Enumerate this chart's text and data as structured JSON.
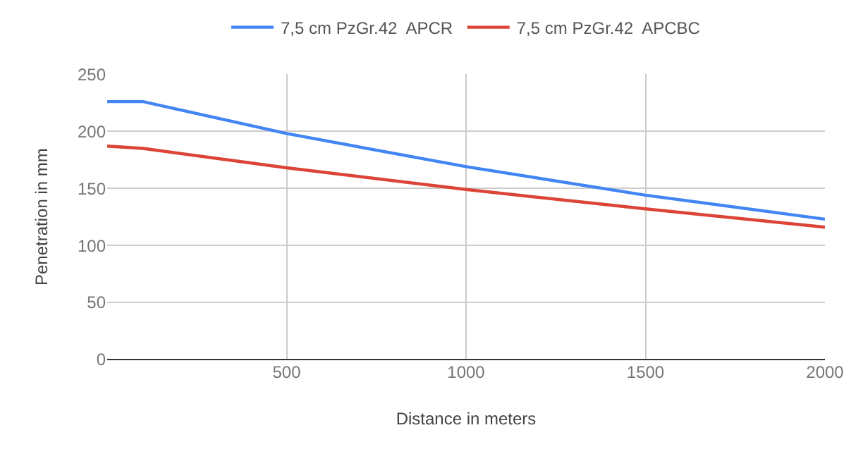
{
  "chart_data": {
    "type": "line",
    "xlabel": "Distance in meters",
    "ylabel": "Penetration in mm",
    "series": [
      {
        "name": "7,5 cm PzGr.42  APCR",
        "color": "#4285f4",
        "x": [
          0,
          100,
          500,
          1000,
          1500,
          2000
        ],
        "values": [
          226,
          226,
          198,
          169,
          144,
          123
        ]
      },
      {
        "name": "7,5 cm PzGr.42  APCBC",
        "color": "#db4437",
        "x": [
          0,
          100,
          500,
          1000,
          1500,
          2000
        ],
        "values": [
          187,
          185,
          168,
          149,
          132,
          116
        ]
      }
    ],
    "xlim": [
      0,
      2000
    ],
    "xticks": [
      500,
      1000,
      1500,
      2000
    ],
    "ylim": [
      0,
      250
    ],
    "yticks": [
      0,
      50,
      100,
      150,
      200,
      250
    ],
    "grid": true,
    "legend": "top",
    "line_style": "solid",
    "marker": "none"
  }
}
